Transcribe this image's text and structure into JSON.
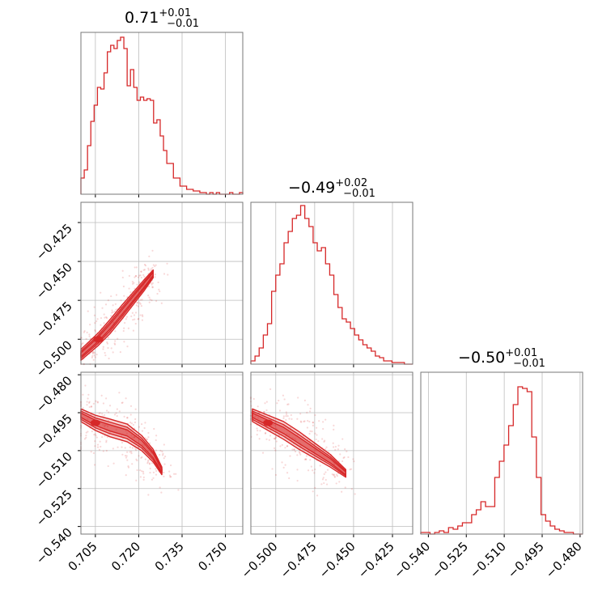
{
  "chart_data": {
    "type": "corner",
    "color": "#d62728",
    "grid": true,
    "parameters": [
      {
        "title_value": "0.71",
        "plus": "+0.01",
        "minus": "−0.01",
        "range": [
          0.7,
          0.756
        ]
      },
      {
        "title_value": "−0.49",
        "plus": "+0.02",
        "minus": "−0.01",
        "range": [
          -0.516,
          -0.412
        ]
      },
      {
        "title_value": "−0.50",
        "plus": "+0.01",
        "minus": "−0.01",
        "range": [
          -0.543,
          -0.479
        ]
      }
    ],
    "x_ticks": [
      {
        "values": [
          0.705,
          0.72,
          0.735,
          0.75
        ],
        "labels": [
          "0.705",
          "0.720",
          "0.735",
          "0.750"
        ]
      },
      {
        "values": [
          -0.5,
          -0.475,
          -0.45,
          -0.425
        ],
        "labels": [
          "−0.500",
          "−0.475",
          "−0.450",
          "−0.425"
        ]
      },
      {
        "values": [
          -0.54,
          -0.525,
          -0.51,
          -0.495,
          -0.48
        ],
        "labels": [
          "−0.540",
          "−0.525",
          "−0.510",
          "−0.495",
          "−0.480"
        ]
      }
    ],
    "y_ticks": [
      null,
      {
        "values": [
          -0.425,
          -0.45,
          -0.475,
          -0.5
        ],
        "labels": [
          "−0.425",
          "−0.450",
          "−0.475",
          "−0.500"
        ]
      },
      {
        "values": [
          -0.48,
          -0.495,
          -0.51,
          -0.525,
          -0.54
        ],
        "labels": [
          "−0.480",
          "−0.495",
          "−0.510",
          "−0.525",
          "−0.540"
        ]
      }
    ],
    "histograms": [
      [
        0.1,
        0.15,
        0.3,
        0.45,
        0.55,
        0.66,
        0.65,
        0.75,
        0.88,
        0.92,
        0.9,
        0.95,
        0.97,
        0.9,
        0.67,
        0.77,
        0.66,
        0.58,
        0.6,
        0.58,
        0.59,
        0.58,
        0.44,
        0.46,
        0.36,
        0.27,
        0.19,
        0.19,
        0.1,
        0.1,
        0.05,
        0.05,
        0.03,
        0.03,
        0.02,
        0.02,
        0.01,
        0.01,
        0.0,
        0.01,
        0.0,
        0.01,
        0.0,
        0.0,
        0.0,
        0.01,
        0.0,
        0.0,
        0.01
      ],
      [
        0.02,
        0.05,
        0.1,
        0.18,
        0.25,
        0.45,
        0.55,
        0.62,
        0.75,
        0.82,
        0.9,
        0.92,
        0.98,
        0.9,
        0.85,
        0.75,
        0.7,
        0.72,
        0.62,
        0.55,
        0.43,
        0.35,
        0.28,
        0.26,
        0.22,
        0.18,
        0.15,
        0.12,
        0.1,
        0.08,
        0.05,
        0.04,
        0.02,
        0.02,
        0.01,
        0.01,
        0.01,
        0.0,
        0.0
      ],
      [
        0.01,
        0.01,
        0.0,
        0.01,
        0.02,
        0.01,
        0.04,
        0.03,
        0.05,
        0.07,
        0.07,
        0.12,
        0.15,
        0.2,
        0.17,
        0.17,
        0.35,
        0.45,
        0.55,
        0.67,
        0.8,
        0.91,
        0.9,
        0.88,
        0.6,
        0.35,
        0.12,
        0.08,
        0.05,
        0.03,
        0.02,
        0.01,
        0.01,
        0.0,
        0.0
      ]
    ],
    "density_ridges": [
      {
        "row": 1,
        "col": 0,
        "points": [
          [
            0.7,
            -0.51
          ],
          [
            0.706,
            -0.5
          ],
          [
            0.71,
            -0.492
          ],
          [
            0.714,
            -0.483
          ],
          [
            0.718,
            -0.474
          ],
          [
            0.722,
            -0.465
          ],
          [
            0.725,
            -0.458
          ]
        ],
        "width": [
          0.0035,
          0.004,
          0.0045,
          0.0045,
          0.004,
          0.0035,
          0.0025
        ]
      },
      {
        "row": 2,
        "col": 0,
        "points": [
          [
            0.7,
            -0.496
          ],
          [
            0.705,
            -0.499
          ],
          [
            0.71,
            -0.501
          ],
          [
            0.716,
            -0.503
          ],
          [
            0.721,
            -0.507
          ],
          [
            0.725,
            -0.512
          ],
          [
            0.728,
            -0.518
          ]
        ],
        "width": [
          0.0025,
          0.003,
          0.0035,
          0.0035,
          0.003,
          0.0025,
          0.0015
        ]
      },
      {
        "row": 2,
        "col": 1,
        "points": [
          [
            -0.515,
            -0.496
          ],
          [
            -0.505,
            -0.499
          ],
          [
            -0.495,
            -0.502
          ],
          [
            -0.485,
            -0.506
          ],
          [
            -0.475,
            -0.51
          ],
          [
            -0.465,
            -0.514
          ],
          [
            -0.455,
            -0.519
          ]
        ],
        "width": [
          0.0025,
          0.003,
          0.0035,
          0.0035,
          0.003,
          0.0025,
          0.0015
        ]
      }
    ]
  }
}
